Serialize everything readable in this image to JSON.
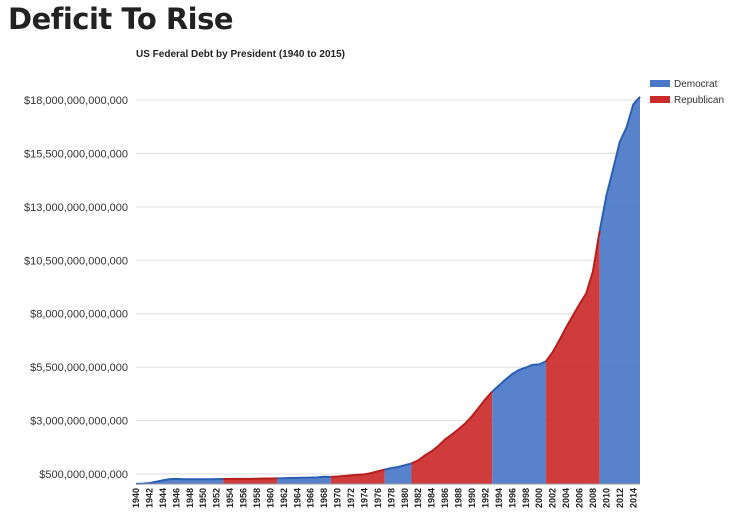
{
  "page": {
    "title": "Deficit To Rise"
  },
  "chart_data": {
    "type": "area",
    "title": "US Federal Debt by President (1940 to 2015)",
    "xlabel": "",
    "ylabel": "",
    "xlim": [
      1940,
      2015
    ],
    "ylim": [
      0,
      19000000000000
    ],
    "grid": true,
    "legend_position": "top-right",
    "series": [
      {
        "name": "Democrat",
        "color": "#4a78c8",
        "line_color": "#2b5fb3"
      },
      {
        "name": "Republican",
        "color": "#cc2b2b",
        "line_color": "#b71e1e"
      }
    ],
    "y_ticks": [
      {
        "value": 500000000000,
        "label": "$500,000,000,000"
      },
      {
        "value": 3000000000000,
        "label": "$3,000,000,000,000"
      },
      {
        "value": 5500000000000,
        "label": "$5,500,000,000,000"
      },
      {
        "value": 8000000000000,
        "label": "$8,000,000,000,000"
      },
      {
        "value": 10500000000000,
        "label": "$10,500,000,000,000"
      },
      {
        "value": 13000000000000,
        "label": "$13,000,000,000,000"
      },
      {
        "value": 15500000000000,
        "label": "$15,500,000,000,000"
      },
      {
        "value": 18000000000000,
        "label": "$18,000,000,000,000"
      }
    ],
    "x_ticks": [
      "1940",
      "1942",
      "1944",
      "1946",
      "1948",
      "1950",
      "1952",
      "1954",
      "1956",
      "1958",
      "1960",
      "1962",
      "1964",
      "1966",
      "1968",
      "1970",
      "1972",
      "1974",
      "1976",
      "1978",
      "1980",
      "1982",
      "1984",
      "1986",
      "1988",
      "1990",
      "1992",
      "1994",
      "1996",
      "1998",
      "2000",
      "2002",
      "2004",
      "2006",
      "2008",
      "2010",
      "2012",
      "2014"
    ],
    "presidential_terms": [
      {
        "start": 1940,
        "end": 1953,
        "party": "Democrat"
      },
      {
        "start": 1953,
        "end": 1961,
        "party": "Republican"
      },
      {
        "start": 1961,
        "end": 1969,
        "party": "Democrat"
      },
      {
        "start": 1969,
        "end": 1977,
        "party": "Republican"
      },
      {
        "start": 1977,
        "end": 1981,
        "party": "Democrat"
      },
      {
        "start": 1981,
        "end": 1993,
        "party": "Republican"
      },
      {
        "start": 1993,
        "end": 2001,
        "party": "Democrat"
      },
      {
        "start": 2001,
        "end": 2009,
        "party": "Republican"
      },
      {
        "start": 2009,
        "end": 2015,
        "party": "Democrat"
      }
    ],
    "x": [
      1940,
      1941,
      1942,
      1943,
      1944,
      1945,
      1946,
      1947,
      1948,
      1949,
      1950,
      1951,
      1952,
      1953,
      1954,
      1955,
      1956,
      1957,
      1958,
      1959,
      1960,
      1961,
      1962,
      1963,
      1964,
      1965,
      1966,
      1967,
      1968,
      1969,
      1970,
      1971,
      1972,
      1973,
      1974,
      1975,
      1976,
      1977,
      1978,
      1979,
      1980,
      1981,
      1982,
      1983,
      1984,
      1985,
      1986,
      1987,
      1988,
      1989,
      1990,
      1991,
      1992,
      1993,
      1994,
      1995,
      1996,
      1997,
      1998,
      1999,
      2000,
      2001,
      2002,
      2003,
      2004,
      2005,
      2006,
      2007,
      2008,
      2009,
      2010,
      2011,
      2012,
      2013,
      2014,
      2015
    ],
    "y": [
      43000000000,
      49000000000,
      72000000000,
      137000000000,
      204000000000,
      260000000000,
      271000000000,
      257000000000,
      252000000000,
      253000000000,
      257000000000,
      255000000000,
      259000000000,
      266000000000,
      271000000000,
      274000000000,
      273000000000,
      272000000000,
      280000000000,
      288000000000,
      291000000000,
      293000000000,
      303000000000,
      310000000000,
      316000000000,
      322000000000,
      328000000000,
      340000000000,
      369000000000,
      366000000000,
      381000000000,
      408000000000,
      436000000000,
      466000000000,
      484000000000,
      542000000000,
      629000000000,
      706000000000,
      777000000000,
      829000000000,
      909000000000,
      995000000000,
      1137000000000,
      1371000000000,
      1564000000000,
      1817000000000,
      2120000000000,
      2346000000000,
      2601000000000,
      2868000000000,
      3206000000000,
      3598000000000,
      4002000000000,
      4351000000000,
      4643000000000,
      4921000000000,
      5181000000000,
      5369000000000,
      5478000000000,
      5606000000000,
      5629000000000,
      5770000000000,
      6198000000000,
      6760000000000,
      7355000000000,
      7905000000000,
      8451000000000,
      8950000000000,
      9986000000000,
      11876000000000,
      13529000000000,
      14764000000000,
      16051000000000,
      16719000000000,
      17794000000000,
      18151000000000
    ]
  }
}
